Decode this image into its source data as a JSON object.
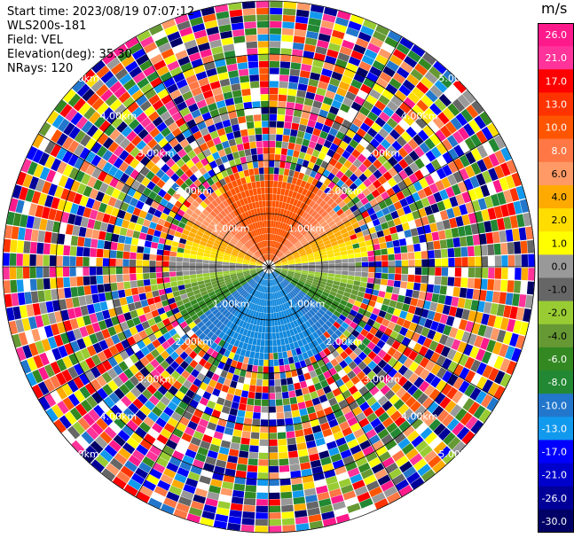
{
  "header": {
    "start_time": "Start time: 2023/08/19 07:07:12",
    "site": "WLS200s-181",
    "field": "Field: VEL",
    "elevation": "Elevation(deg): 35.30",
    "nrays": "NRays: 120"
  },
  "range_rings": [
    "1.00km",
    "2.00km",
    "3.00km",
    "4.00km",
    "5.00km"
  ],
  "colorbar": {
    "unit": "m/s",
    "ticks": [
      "26.0",
      "21.0",
      "17.0",
      "13.0",
      "10.0",
      "8.0",
      "6.0",
      "4.0",
      "2.0",
      "1.0",
      "0.0",
      "-1.0",
      "-2.0",
      "-4.0",
      "-6.0",
      "-8.0",
      "-10.0",
      "-13.0",
      "-17.0",
      "-21.0",
      "-26.0",
      "-30.0"
    ],
    "colors": [
      "#ff1a8c",
      "#ff3399",
      "#ff0000",
      "#ff3300",
      "#ff5500",
      "#ff7744",
      "#ff9966",
      "#ffaa00",
      "#ffdd00",
      "#ffff00",
      "#999999",
      "#666666",
      "#99cc33",
      "#669933",
      "#338822",
      "#228833",
      "#2277cc",
      "#1199ee",
      "#0000ff",
      "#0000cc",
      "#000099",
      "#000066"
    ]
  }
}
